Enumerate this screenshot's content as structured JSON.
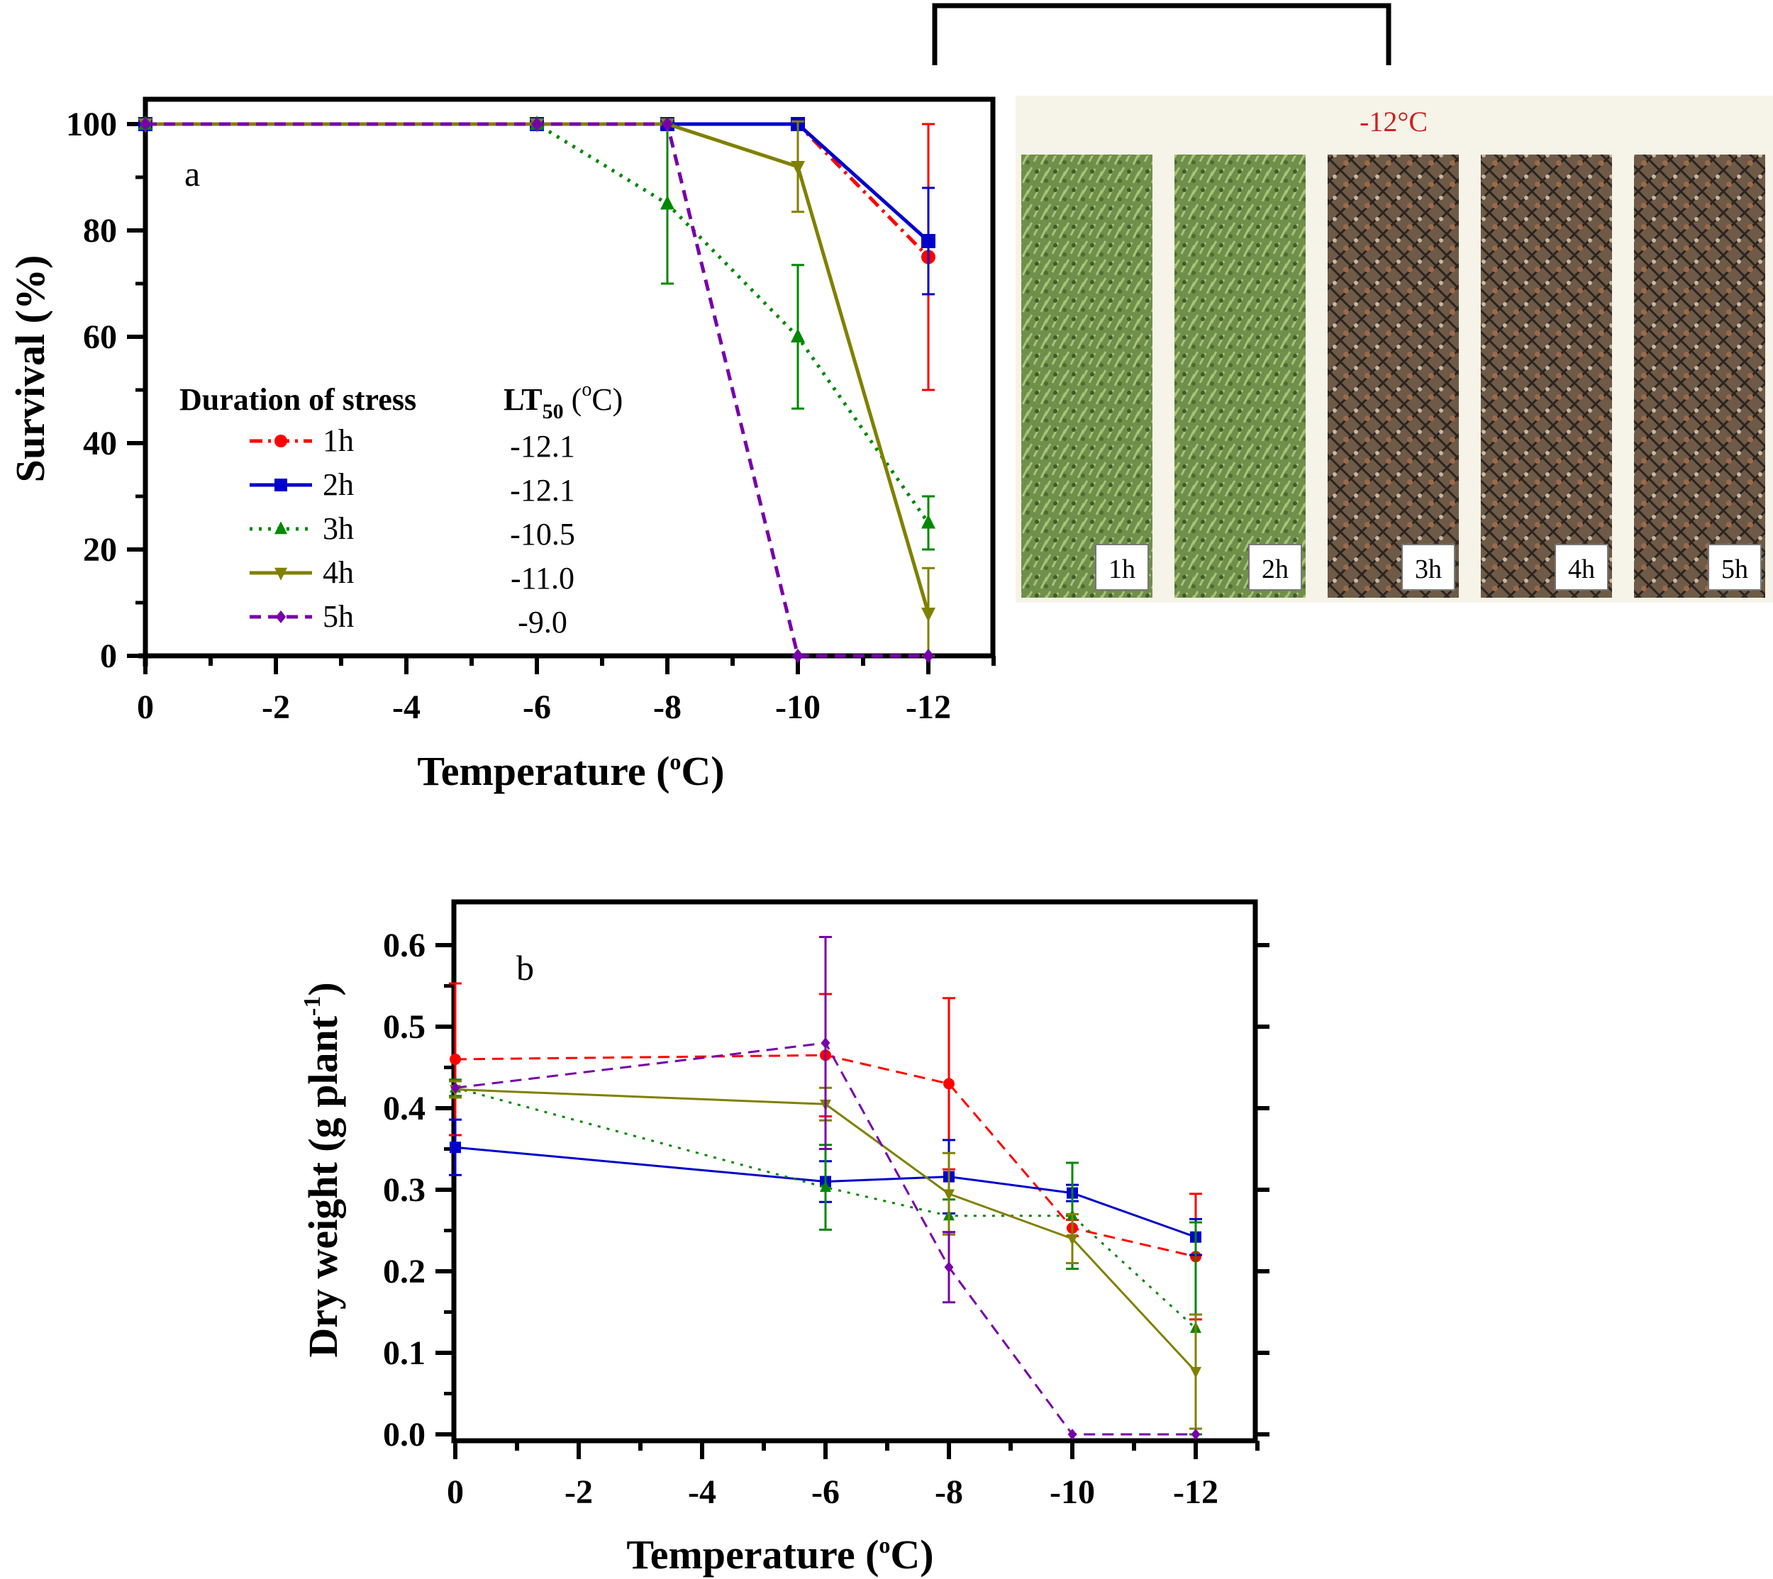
{
  "chart_data": [
    {
      "type": "line",
      "panel_label": "a",
      "xlabel": "Temperature (oC)",
      "ylabel": "Survival (%)",
      "x": [
        0,
        -6,
        -8,
        -10,
        -12
      ],
      "xticks": [
        "0",
        "-2",
        "-4",
        "-6",
        "-8",
        "-10",
        "-12"
      ],
      "yticks": [
        "0",
        "20",
        "40",
        "60",
        "80",
        "100"
      ],
      "xlim": [
        0,
        -13
      ],
      "ylim": [
        0,
        105
      ],
      "legend": {
        "title": "Duration of stress",
        "lt_title": "LT50 (oC)",
        "placement": "inside-left"
      },
      "series": [
        {
          "name": "1h",
          "lt50": "-12.1",
          "color": "#ff0000",
          "style": "dash-dot",
          "marker": "circle",
          "values": [
            100,
            100,
            100,
            100,
            75
          ],
          "errors": [
            0,
            0,
            0,
            0,
            25
          ]
        },
        {
          "name": "2h",
          "lt50": "-12.1",
          "color": "#0000cc",
          "style": "solid",
          "marker": "square",
          "values": [
            100,
            100,
            100,
            100,
            78
          ],
          "errors": [
            0,
            0,
            0,
            0,
            10
          ]
        },
        {
          "name": "3h",
          "lt50": "-10.5",
          "color": "#008800",
          "style": "dotted",
          "marker": "triangle-up",
          "values": [
            100,
            100,
            85,
            60,
            25
          ],
          "errors": [
            0,
            0,
            15,
            13.5,
            5
          ]
        },
        {
          "name": "4h",
          "lt50": "-11.0",
          "color": "#808000",
          "style": "solid",
          "marker": "triangle-down",
          "values": [
            100,
            100,
            100,
            92,
            8
          ],
          "errors": [
            0,
            0,
            0,
            8.5,
            8.5
          ]
        },
        {
          "name": "5h",
          "lt50": "-9.0",
          "color": "#7700aa",
          "style": "dashed",
          "marker": "diamond",
          "values": [
            100,
            100,
            100,
            0,
            0
          ],
          "errors": [
            0,
            0,
            0,
            0,
            0
          ]
        }
      ]
    },
    {
      "type": "line",
      "panel_label": "b",
      "xlabel": "Temperature (oC)",
      "ylabel": "Dry weight (g plant-1)",
      "x": [
        0,
        -6,
        -8,
        -10,
        -12
      ],
      "xticks": [
        "0",
        "-2",
        "-4",
        "-6",
        "-8",
        "-10",
        "-12"
      ],
      "yticks": [
        "0.0",
        "0.1",
        "0.2",
        "0.3",
        "0.4",
        "0.5",
        "0.6"
      ],
      "xlim": [
        0,
        -13
      ],
      "ylim": [
        0,
        0.65
      ],
      "series": [
        {
          "name": "1h",
          "color": "#ff0000",
          "style": "dashed",
          "marker": "circle",
          "values": [
            0.46,
            0.465,
            0.43,
            0.253,
            0.218
          ],
          "errors": [
            0.093,
            0.075,
            0.105,
            0.01,
            0.077
          ]
        },
        {
          "name": "2h",
          "color": "#0000cc",
          "style": "solid",
          "marker": "square",
          "values": [
            0.352,
            0.31,
            0.316,
            0.296,
            0.242
          ],
          "errors": [
            0.034,
            0.025,
            0.045,
            0.01,
            0.022
          ]
        },
        {
          "name": "3h",
          "color": "#008800",
          "style": "dotted",
          "marker": "triangle-up",
          "values": [
            0.425,
            0.303,
            0.268,
            0.268,
            0.13
          ],
          "errors": [
            0.01,
            0.052,
            0.02,
            0.065,
            0.13
          ]
        },
        {
          "name": "4h",
          "color": "#808000",
          "style": "solid",
          "marker": "triangle-down",
          "values": [
            0.423,
            0.405,
            0.295,
            0.24,
            0.077
          ],
          "errors": [
            0.01,
            0.02,
            0.05,
            0.03,
            0.07
          ]
        },
        {
          "name": "5h",
          "color": "#7700aa",
          "style": "dashed",
          "marker": "diamond",
          "values": [
            0.425,
            0.48,
            0.205,
            0.0,
            0.0
          ],
          "errors": [
            0.0,
            0.13,
            0.043,
            0.0,
            0.0
          ]
        }
      ]
    }
  ],
  "photo_panel": {
    "title": "-12°C",
    "labels": [
      "1h",
      "2h",
      "3h",
      "4h",
      "5h"
    ],
    "tones": [
      "green",
      "green",
      "brown",
      "brown",
      "brown"
    ]
  }
}
